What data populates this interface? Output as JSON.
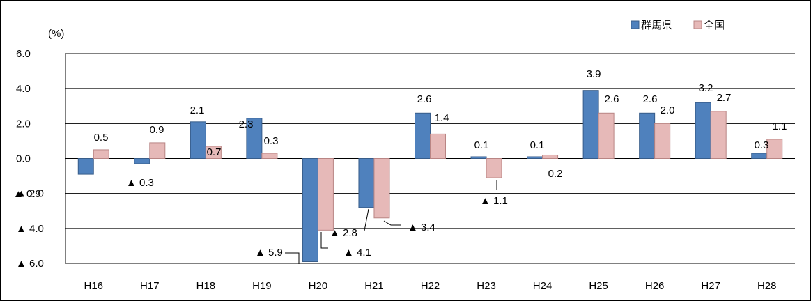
{
  "chart_data": {
    "type": "bar",
    "unit_label": "(%)",
    "categories": [
      "H16",
      "H17",
      "H18",
      "H19",
      "H20",
      "H21",
      "H22",
      "H23",
      "H24",
      "H25",
      "H26",
      "H27",
      "H28"
    ],
    "series": [
      {
        "name": "群馬県",
        "color": "#4F81BD",
        "values": [
          -0.9,
          -0.3,
          2.1,
          2.3,
          -5.9,
          -2.8,
          2.6,
          0.1,
          0.1,
          3.9,
          2.6,
          3.2,
          0.3
        ],
        "labels": [
          "▲ 0.9",
          "▲ 0.3",
          "2.1",
          "2.3",
          "▲ 5.9",
          "▲ 2.8",
          "2.6",
          "0.1",
          "0.1",
          "3.9",
          "2.6",
          "3.2",
          "0.3"
        ]
      },
      {
        "name": "全国",
        "color": "#E6B9B8",
        "values": [
          0.5,
          0.9,
          0.7,
          0.3,
          -4.1,
          -3.4,
          1.4,
          -1.1,
          0.2,
          2.6,
          2.0,
          2.7,
          1.1
        ],
        "labels": [
          "0.5",
          "0.9",
          "0.7",
          "0.3",
          "▲ 4.1",
          "▲ 3.4",
          "1.4",
          "▲ 1.1",
          "0.2",
          "2.6",
          "2.0",
          "2.7",
          "1.1"
        ]
      }
    ],
    "ylim": [
      -6,
      6
    ],
    "yticks": [
      6,
      4,
      2,
      0,
      -2,
      -4,
      -6
    ],
    "ytick_labels": [
      "6.0",
      "4.0",
      "2.0",
      "0.0",
      "▲ 2.0",
      "▲ 4.0",
      "▲ 6.0"
    ],
    "grid": true,
    "legend_position": "top-right"
  }
}
